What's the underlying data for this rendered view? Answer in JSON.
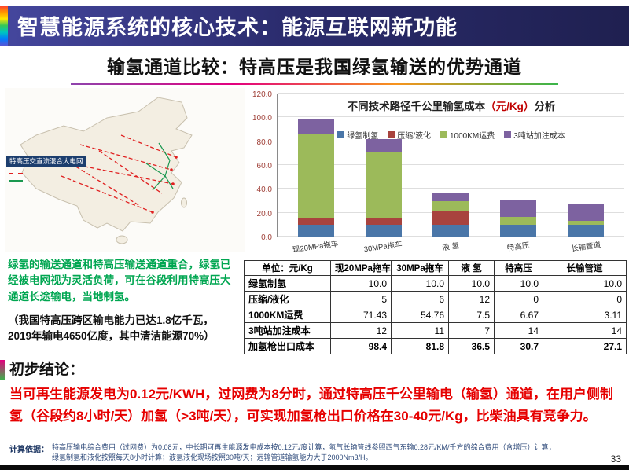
{
  "header": {
    "title": "智慧能源系统的核心技术：能源互联网新功能"
  },
  "subtitle": "输氢通道比较：特高压是我国绿氢输送的优势通道",
  "map": {
    "label": "特高压交直流混合大电网"
  },
  "left_notes": {
    "green_text": "绿氢的输送通道和特高压输送通道重合，绿氢已经被电网视为灵活负荷，可在谷段利用特高压大通道长途输电，当地制氢。",
    "black_text": "（我国特高压跨区输电能力已达1.8亿千瓦，2019年输电4650亿度，其中清洁能源70%）"
  },
  "chart_data": {
    "type": "bar",
    "stacked": true,
    "title": "不同技术路径千公里输氢成本（元/Kg）分析",
    "title_parts": {
      "prefix": "不同技术路径千公里输氢成本",
      "unit": "（元/Kg）",
      "suffix": "分析"
    },
    "categories": [
      "现20MPa拖车",
      "30MPa拖车",
      "液 氢",
      "特高压",
      "长输管道"
    ],
    "series": [
      {
        "name": "绿氢制氢",
        "color": "#4a76a8",
        "values": [
          10.0,
          10.0,
          10.0,
          10.0,
          10.0
        ]
      },
      {
        "name": "压缩/液化",
        "color": "#a8433e",
        "values": [
          5,
          6,
          12,
          0,
          0
        ]
      },
      {
        "name": "1000KM运费",
        "color": "#9cba5a",
        "values": [
          71.43,
          54.76,
          7.5,
          6.67,
          3.11
        ]
      },
      {
        "name": "3吨站加注成本",
        "color": "#7d62a0",
        "values": [
          12,
          11,
          7,
          14,
          14
        ]
      }
    ],
    "totals": [
      98.4,
      81.8,
      36.5,
      30.7,
      27.1
    ],
    "ylim": [
      0,
      120
    ],
    "ytick_step": 20,
    "grid": true,
    "legend_position": "top"
  },
  "table": {
    "headers": [
      "单位：元/Kg",
      "现20MPa拖车",
      "30MPa拖车",
      "液 氢",
      "特高压",
      "长输管道"
    ],
    "rows": [
      [
        "绿氢制氢",
        "10.0",
        "10.0",
        "10.0",
        "10.0",
        "10.0"
      ],
      [
        "压缩/液化",
        "5",
        "6",
        "12",
        "0",
        "0"
      ],
      [
        "1000KM运费",
        "71.43",
        "54.76",
        "7.5",
        "6.67",
        "3.11"
      ],
      [
        "3吨站加注成本",
        "12",
        "11",
        "7",
        "14",
        "14"
      ],
      [
        "加氢枪出口成本",
        "98.4",
        "81.8",
        "36.5",
        "30.7",
        "27.1"
      ]
    ]
  },
  "conclusion": {
    "heading": "初步结论：",
    "body": "当可再生能源发电为0.12元/KWH，过网费为8分时，通过特高压千公里输电（输氢）通道，在用户侧制氢（谷段约8小时/天）加氢（>3吨/天），可实现加氢枪出口价格在30-40元/Kg，比柴油具有竞争力。"
  },
  "footer": {
    "label": "计算依据：",
    "line1": "特高压输电综合费用（过网费）为0.08元，中长期可再生能源发电成本按0.12元/度计算，氢气长输管线参照西气东输0.28元/KM/千方的综合费用（含增压）计算，",
    "line2": "绿氢制氢和液化按照每天8小时计算；液氢液化现场按照30吨/天；远输管道输氢能力大于2000Nm3/H。",
    "page_number": "33"
  }
}
